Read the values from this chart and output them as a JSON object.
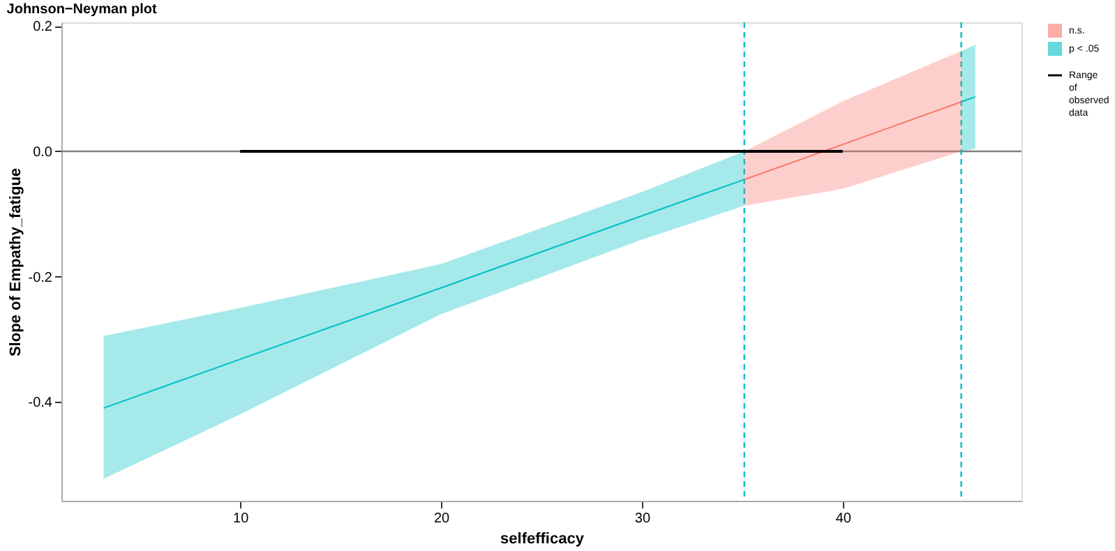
{
  "chart_data": {
    "type": "line",
    "title": "Johnson−Neyman plot",
    "xlabel": "selfefficacy",
    "ylabel": "Slope of Empathy_fatigue",
    "xlim": [
      1.1,
      48.9
    ],
    "ylim": [
      -0.558,
      0.206
    ],
    "xticks": [
      10,
      20,
      30,
      40
    ],
    "yticks": [
      {
        "value": -0.4,
        "label": "-0.4"
      },
      {
        "value": -0.2,
        "label": "-0.2"
      },
      {
        "value": 0,
        "label": "0.0"
      },
      {
        "value": 0.2,
        "label": "0.2"
      }
    ],
    "grid": false,
    "legend": "right",
    "series": [
      {
        "name": "Range of observed data",
        "color": "#000000",
        "x": [
          10,
          40
        ],
        "values": [
          0,
          0
        ]
      },
      {
        "name": "n.s.",
        "color": "#f8766d",
        "x": [
          35.1,
          40,
          45.9
        ],
        "values": [
          -0.045,
          0.011,
          0.079
        ],
        "lower": [
          -0.087,
          -0.06,
          0.0
        ],
        "upper": [
          0.0,
          0.08,
          0.16
        ]
      },
      {
        "name": "p < .05",
        "color": "#00bfc4",
        "x": [
          3.2,
          10,
          20,
          30,
          35.1,
          40,
          45.9,
          46.6
        ],
        "values": [
          -0.41,
          -0.332,
          -0.218,
          -0.103,
          -0.045,
          null,
          0.079,
          0.087
        ],
        "lower": [
          -0.523,
          -0.42,
          -0.26,
          -0.141,
          -0.087,
          null,
          0.0,
          0.004
        ],
        "upper": [
          -0.295,
          -0.25,
          -0.18,
          -0.065,
          0.0,
          null,
          0.16,
          0.17
        ]
      }
    ],
    "ref_lines": [
      {
        "axis": "y",
        "value": 0,
        "color": "#808080",
        "line_style": "solid"
      },
      {
        "axis": "x",
        "value": 35.1,
        "color": "#00bfc4",
        "line_style": "dashed"
      },
      {
        "axis": "x",
        "value": 45.9,
        "color": "#00bfc4",
        "line_style": "dashed"
      }
    ]
  }
}
